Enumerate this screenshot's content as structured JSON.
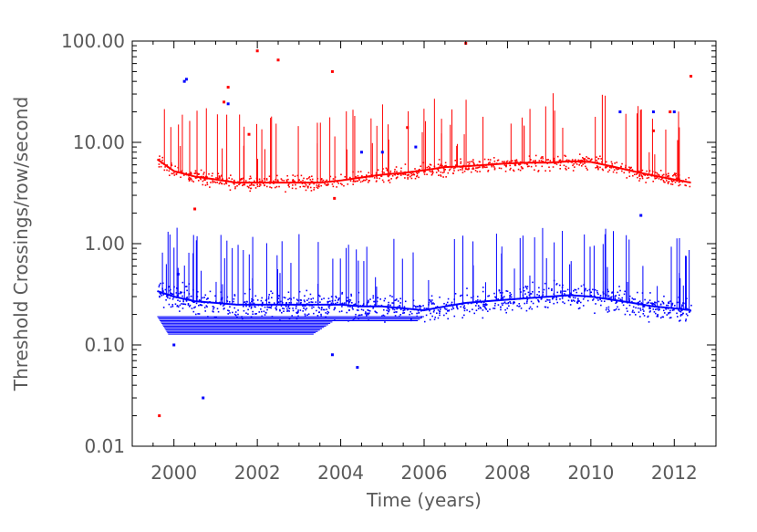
{
  "chart_data": {
    "type": "scatter",
    "title": "",
    "xlabel": "Time (years)",
    "ylabel": "Threshold Crossings/row/second",
    "xscale": "linear",
    "yscale": "log",
    "xlim": [
      1999.0,
      2013.0
    ],
    "ylim": [
      0.01,
      100.0
    ],
    "xticks": [
      2000,
      2002,
      2004,
      2006,
      2008,
      2010,
      2012
    ],
    "xtick_labels": [
      "2000",
      "2002",
      "2004",
      "2006",
      "2008",
      "2010",
      "2012"
    ],
    "yticks": [
      0.01,
      0.1,
      1,
      10,
      100
    ],
    "ytick_labels": [
      "0.01",
      "0.10",
      "1.00",
      "10.00",
      "100.00"
    ],
    "grid": false,
    "series": [
      {
        "name": "red",
        "color": "#ff0000",
        "baseline": [
          [
            1999.6,
            6.8
          ],
          [
            2000.0,
            5.2
          ],
          [
            2000.5,
            4.6
          ],
          [
            2001.0,
            4.3
          ],
          [
            2001.5,
            4.0
          ],
          [
            2002.0,
            4.0
          ],
          [
            2002.5,
            4.0
          ],
          [
            2003.0,
            4.0
          ],
          [
            2003.5,
            4.0
          ],
          [
            2004.0,
            4.2
          ],
          [
            2004.5,
            4.5
          ],
          [
            2005.0,
            4.8
          ],
          [
            2005.5,
            5.0
          ],
          [
            2006.0,
            5.3
          ],
          [
            2006.5,
            5.7
          ],
          [
            2007.0,
            5.8
          ],
          [
            2007.5,
            6.0
          ],
          [
            2008.0,
            6.2
          ],
          [
            2008.5,
            6.3
          ],
          [
            2009.0,
            6.3
          ],
          [
            2009.5,
            6.5
          ],
          [
            2010.0,
            6.4
          ],
          [
            2010.5,
            5.8
          ],
          [
            2011.0,
            5.2
          ],
          [
            2011.5,
            4.7
          ],
          [
            2012.0,
            4.3
          ],
          [
            2012.4,
            4.0
          ]
        ],
        "outliers": [
          [
            1999.65,
            0.02
          ],
          [
            2000.5,
            2.2
          ],
          [
            2001.3,
            35.0
          ],
          [
            2002.0,
            80.0
          ],
          [
            2002.5,
            65.0
          ],
          [
            2003.8,
            50.0
          ],
          [
            2003.85,
            2.8
          ],
          [
            2005.6,
            14.0
          ],
          [
            2007.0,
            95.0
          ],
          [
            2011.5,
            13.0
          ],
          [
            2011.9,
            20.0
          ],
          [
            2012.4,
            45.0
          ],
          [
            2001.2,
            25.0
          ],
          [
            2001.8,
            12.0
          ]
        ]
      },
      {
        "name": "blue",
        "color": "#0000ff",
        "baseline": [
          [
            1999.6,
            0.34
          ],
          [
            2000.0,
            0.3
          ],
          [
            2000.5,
            0.27
          ],
          [
            2001.0,
            0.26
          ],
          [
            2001.5,
            0.25
          ],
          [
            2002.0,
            0.25
          ],
          [
            2002.5,
            0.25
          ],
          [
            2003.0,
            0.25
          ],
          [
            2003.5,
            0.25
          ],
          [
            2004.0,
            0.25
          ],
          [
            2004.5,
            0.24
          ],
          [
            2005.0,
            0.24
          ],
          [
            2005.5,
            0.23
          ],
          [
            2006.0,
            0.22
          ],
          [
            2006.5,
            0.24
          ],
          [
            2007.0,
            0.26
          ],
          [
            2007.5,
            0.27
          ],
          [
            2008.0,
            0.28
          ],
          [
            2008.5,
            0.29
          ],
          [
            2009.0,
            0.3
          ],
          [
            2009.5,
            0.31
          ],
          [
            2010.0,
            0.3
          ],
          [
            2010.5,
            0.28
          ],
          [
            2011.0,
            0.26
          ],
          [
            2011.5,
            0.24
          ],
          [
            2012.0,
            0.23
          ],
          [
            2012.4,
            0.22
          ]
        ],
        "outliers": [
          [
            2000.3,
            42.0
          ],
          [
            2000.25,
            40.0
          ],
          [
            2000.0,
            0.1
          ],
          [
            2000.7,
            0.03
          ],
          [
            2001.3,
            24.0
          ],
          [
            2003.8,
            0.08
          ],
          [
            2004.4,
            0.06
          ],
          [
            2004.5,
            8.0
          ],
          [
            2005.0,
            8.0
          ],
          [
            2005.8,
            9.0
          ],
          [
            2010.7,
            20.0
          ],
          [
            2011.5,
            20.0
          ],
          [
            2012.0,
            20.0
          ],
          [
            2011.2,
            1.9
          ],
          [
            2000.1,
            0.5
          ]
        ]
      }
    ]
  }
}
